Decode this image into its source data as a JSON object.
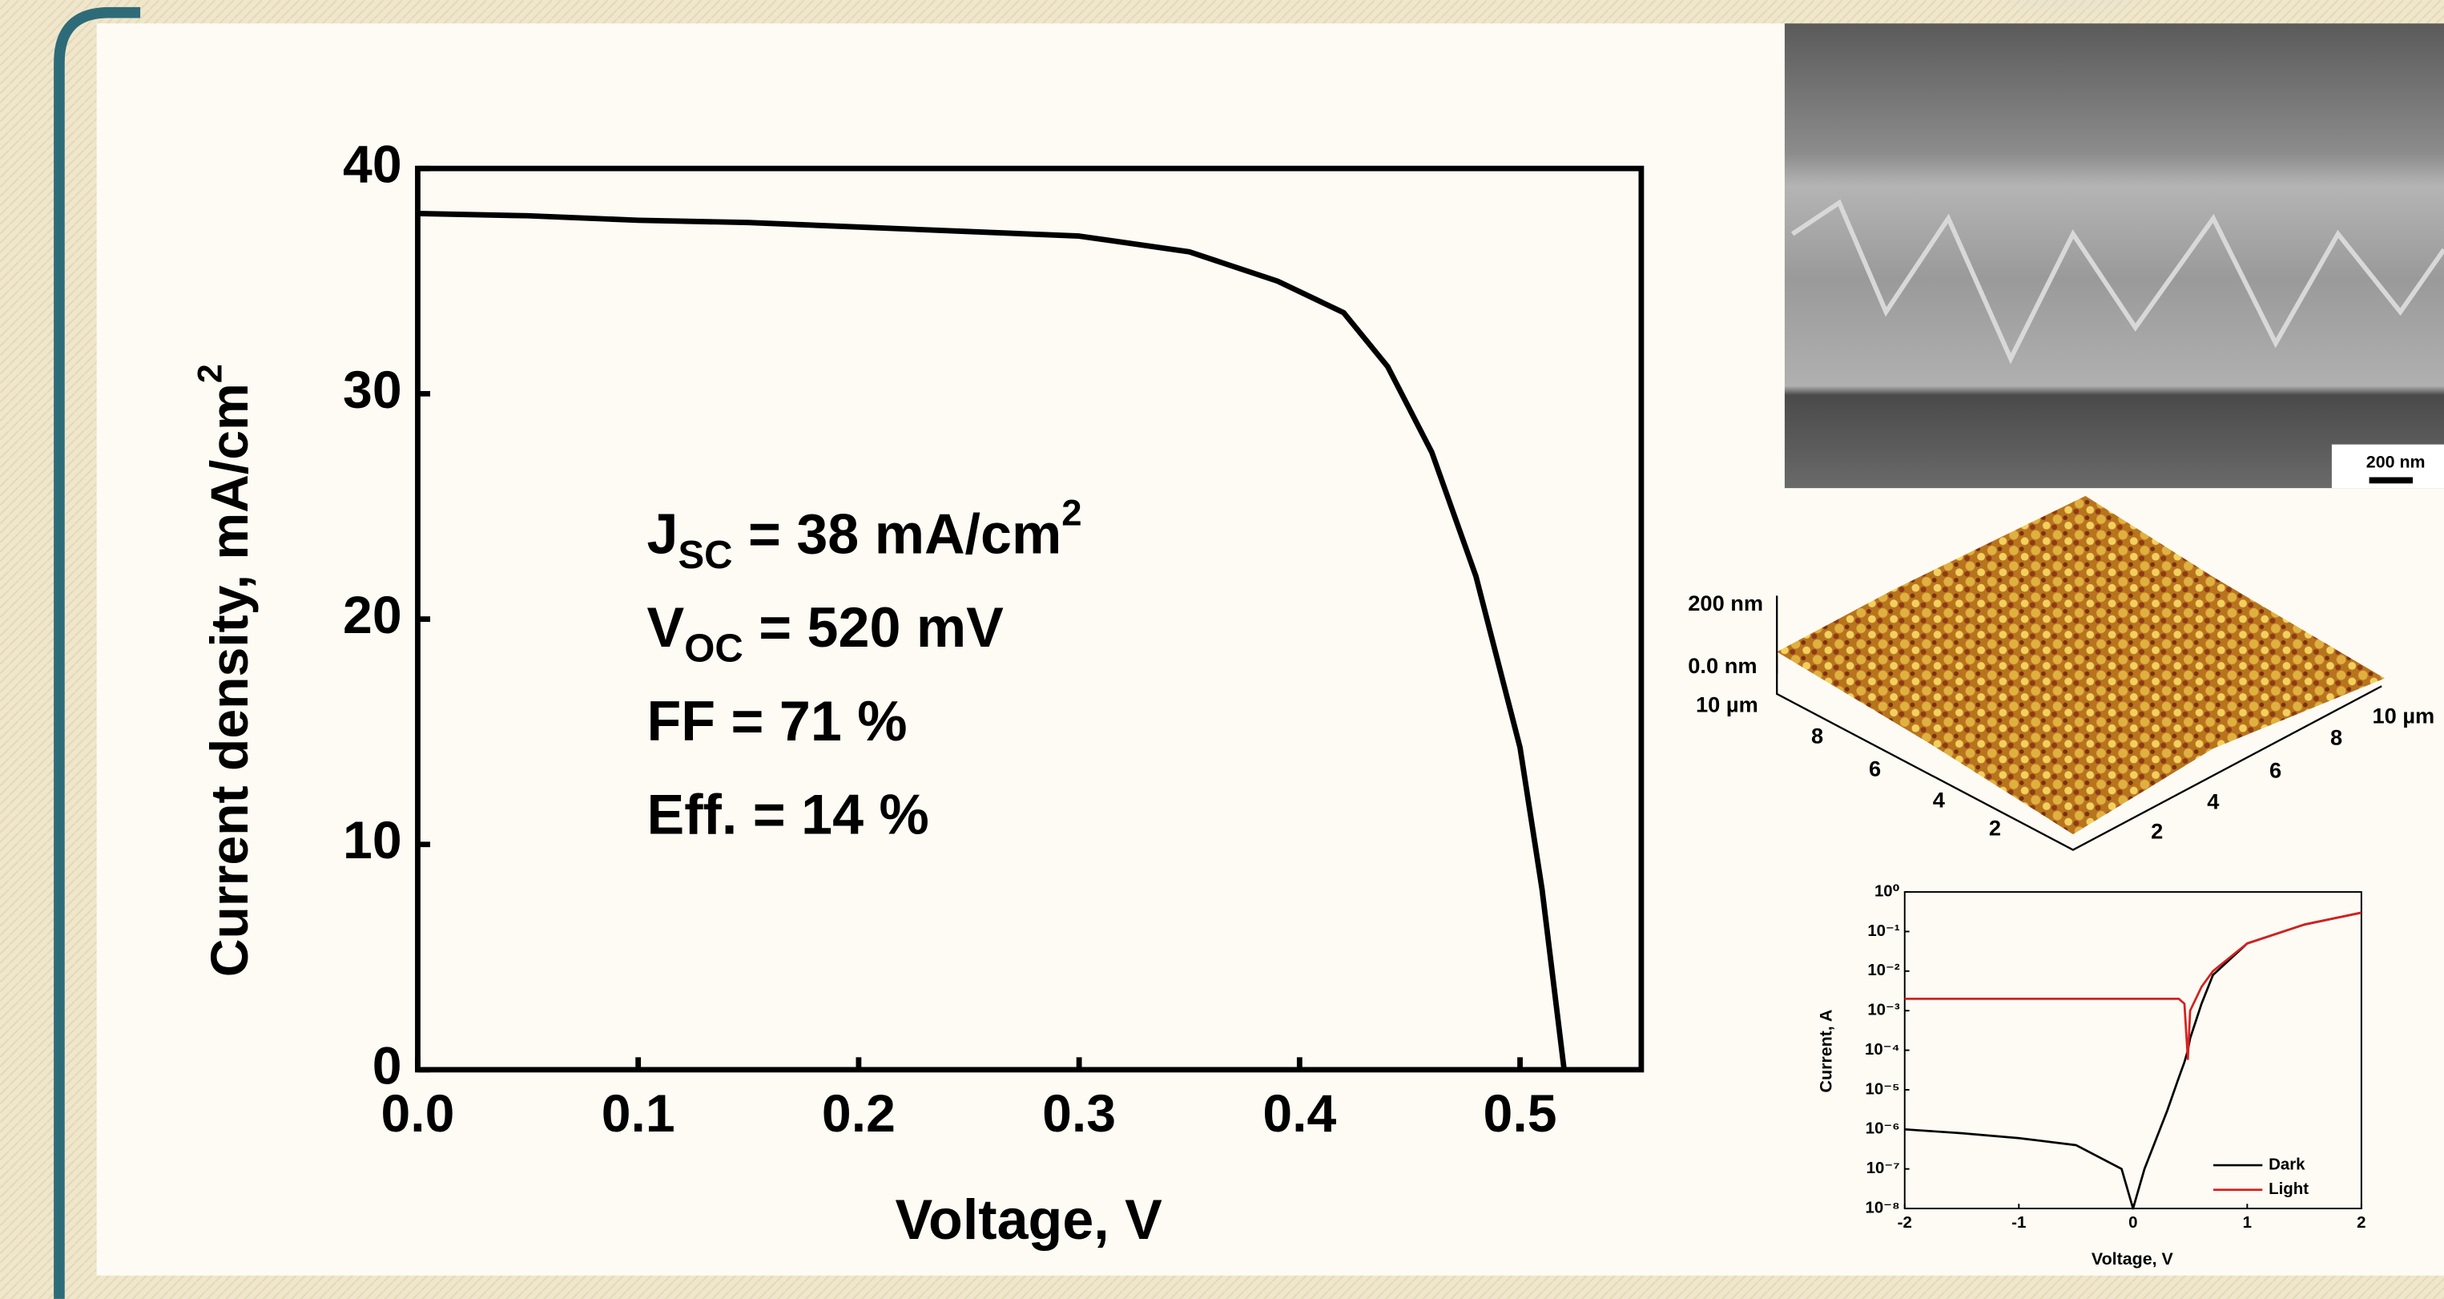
{
  "chart_data": [
    {
      "type": "line",
      "xlabel": "Voltage, V",
      "ylabel": "Current density, mA/cm",
      "ylabel_sup": "2",
      "x": [
        0,
        0.05,
        0.1,
        0.15,
        0.2,
        0.25,
        0.3,
        0.35,
        0.39,
        0.42,
        0.44,
        0.46,
        0.48,
        0.5,
        0.51,
        0.52
      ],
      "series": [
        {
          "color": "#000000",
          "values": [
            38,
            37.9,
            37.7,
            37.6,
            37.4,
            37.2,
            37.0,
            36.3,
            35.0,
            33.6,
            31.2,
            27.4,
            21.9,
            14.3,
            8.0,
            0
          ]
        }
      ],
      "xlim": [
        0,
        0.555
      ],
      "ylim": [
        0,
        40
      ],
      "xticks": [
        {
          "value": 0,
          "label": "0.0"
        },
        0.1,
        0.2,
        0.3,
        0.4,
        0.5
      ],
      "yticks": [
        0,
        10,
        20,
        30,
        40
      ],
      "annotations": [
        {
          "text": "J",
          "sub": "SC",
          "after": " = 38 mA/cm",
          "sup": "2"
        },
        {
          "text": "V",
          "sub": "OC",
          "after": " = 520 mV"
        },
        {
          "text": "FF  = 71 %"
        },
        {
          "text": "Eff. = 14 %"
        }
      ]
    },
    {
      "type": "line",
      "log_y": true,
      "xlabel": "Voltage, V",
      "ylabel": "Current, A",
      "x": [
        -2,
        -1.5,
        -1,
        -0.5,
        -0.1,
        0,
        0.1,
        0.3,
        0.4,
        0.45,
        0.48,
        0.5,
        0.6,
        0.7,
        1,
        1.5,
        2
      ],
      "series": [
        {
          "name": "Dark",
          "color": "#000000",
          "values": [
            1e-06,
            8e-07,
            6e-07,
            4e-07,
            1e-07,
            1e-08,
            1e-07,
            3e-06,
            2e-05,
            5e-05,
            0.0001,
            0.0002,
            0.0015,
            0.008,
            0.05,
            0.15,
            0.3
          ]
        },
        {
          "name": "Light",
          "color": "#d42020",
          "values": [
            0.002,
            0.002,
            0.002,
            0.002,
            0.002,
            0.002,
            0.002,
            0.002,
            0.002,
            0.0015,
            6e-05,
            0.001,
            0.004,
            0.01,
            0.05,
            0.15,
            0.3
          ]
        }
      ],
      "xlim": [
        -2,
        2
      ],
      "ylim": [
        1e-08,
        1
      ],
      "xticks": [
        -2,
        -1,
        0,
        1,
        2
      ],
      "yticks": [
        {
          "value": 1,
          "label": "10⁰"
        },
        {
          "value": 0.1,
          "label": "10⁻¹"
        },
        {
          "value": 0.01,
          "label": "10⁻²"
        },
        {
          "value": 0.001,
          "label": "10⁻³"
        },
        {
          "value": 0.0001,
          "label": "10⁻⁴"
        },
        {
          "value": 1e-05,
          "label": "10⁻⁵"
        },
        {
          "value": 1e-06,
          "label": "10⁻⁶"
        },
        {
          "value": 1e-07,
          "label": "10⁻⁷"
        },
        {
          "value": 1e-08,
          "label": "10⁻⁸"
        }
      ],
      "legend": "lower right"
    }
  ],
  "sem": {
    "scale_label": "200 nm"
  },
  "afm": {
    "z_top": "200 nm",
    "z_bottom": "0.0 nm",
    "left_axis": [
      "10 µm",
      "8",
      "6",
      "4",
      "2"
    ],
    "right_axis": [
      "2",
      "4",
      "6",
      "8",
      "10 µm"
    ]
  }
}
